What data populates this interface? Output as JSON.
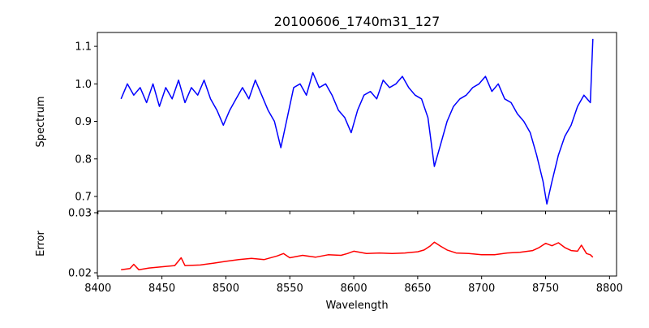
{
  "chart_data": [
    {
      "type": "line",
      "title": "20100606_1740m31_127",
      "ylabel": "Spectrum",
      "xlabel": "",
      "xlim": [
        8399.5,
        8805.5
      ],
      "ylim": [
        0.661,
        1.137
      ],
      "xticks": [
        8400,
        8450,
        8500,
        8550,
        8600,
        8650,
        8700,
        8750,
        8800
      ],
      "yticks": [
        "0.7",
        "0.8",
        "0.9",
        "1.0",
        "1.1"
      ],
      "color": "#0000ff",
      "x": [
        8418,
        8423,
        8428,
        8433,
        8438,
        8443,
        8448,
        8453,
        8458,
        8463,
        8468,
        8473,
        8478,
        8483,
        8488,
        8493,
        8498,
        8503,
        8508,
        8513,
        8518,
        8523,
        8528,
        8533,
        8538,
        8543,
        8548,
        8553,
        8558,
        8563,
        8568,
        8573,
        8578,
        8583,
        8588,
        8593,
        8598,
        8603,
        8608,
        8613,
        8618,
        8623,
        8628,
        8633,
        8638,
        8643,
        8648,
        8653,
        8658,
        8663,
        8668,
        8673,
        8678,
        8683,
        8688,
        8693,
        8698,
        8703,
        8708,
        8713,
        8718,
        8723,
        8728,
        8733,
        8738,
        8743,
        8748,
        8751,
        8755,
        8760,
        8765,
        8770,
        8775,
        8780,
        8785,
        8787
      ],
      "y": [
        0.96,
        1.0,
        0.97,
        0.99,
        0.95,
        1.0,
        0.94,
        0.99,
        0.96,
        1.01,
        0.95,
        0.99,
        0.97,
        1.01,
        0.96,
        0.93,
        0.89,
        0.93,
        0.96,
        0.99,
        0.96,
        1.01,
        0.97,
        0.93,
        0.9,
        0.83,
        0.91,
        0.99,
        1.0,
        0.97,
        1.03,
        0.99,
        1.0,
        0.97,
        0.93,
        0.91,
        0.87,
        0.93,
        0.97,
        0.98,
        0.96,
        1.01,
        0.99,
        1.0,
        1.02,
        0.99,
        0.97,
        0.96,
        0.91,
        0.78,
        0.84,
        0.9,
        0.94,
        0.96,
        0.97,
        0.99,
        1.0,
        1.02,
        0.98,
        1.0,
        0.96,
        0.95,
        0.92,
        0.9,
        0.87,
        0.81,
        0.74,
        0.68,
        0.74,
        0.81,
        0.86,
        0.89,
        0.94,
        0.97,
        0.95,
        1.12
      ]
    },
    {
      "type": "line",
      "title": "",
      "ylabel": "Error",
      "xlabel": "Wavelength",
      "xlim": [
        8399.5,
        8805.5
      ],
      "ylim": [
        0.01946,
        0.03027
      ],
      "xticks": [
        8400,
        8450,
        8500,
        8550,
        8600,
        8650,
        8700,
        8750,
        8800
      ],
      "yticks": [
        "0.02",
        "0.03"
      ],
      "color": "#ff0000",
      "x": [
        8418,
        8425,
        8428,
        8432,
        8440,
        8450,
        8460,
        8465,
        8468,
        8480,
        8490,
        8500,
        8510,
        8520,
        8530,
        8540,
        8545,
        8550,
        8560,
        8570,
        8580,
        8590,
        8595,
        8600,
        8610,
        8620,
        8630,
        8640,
        8650,
        8655,
        8660,
        8663,
        8668,
        8673,
        8680,
        8690,
        8700,
        8710,
        8720,
        8730,
        8740,
        8745,
        8750,
        8755,
        8760,
        8765,
        8770,
        8775,
        8778,
        8782,
        8785,
        8787
      ],
      "y": [
        0.0205,
        0.0207,
        0.0214,
        0.0205,
        0.0208,
        0.021,
        0.0212,
        0.0225,
        0.0212,
        0.0213,
        0.0216,
        0.0219,
        0.0222,
        0.0224,
        0.0222,
        0.0228,
        0.0232,
        0.0225,
        0.0229,
        0.0226,
        0.023,
        0.0229,
        0.0232,
        0.0236,
        0.0232,
        0.0233,
        0.0232,
        0.0233,
        0.0235,
        0.0238,
        0.0245,
        0.0251,
        0.0244,
        0.0238,
        0.0233,
        0.0232,
        0.023,
        0.023,
        0.0233,
        0.0234,
        0.0237,
        0.0242,
        0.0249,
        0.0245,
        0.025,
        0.0242,
        0.0237,
        0.0236,
        0.0246,
        0.0232,
        0.023,
        0.0226
      ]
    }
  ]
}
